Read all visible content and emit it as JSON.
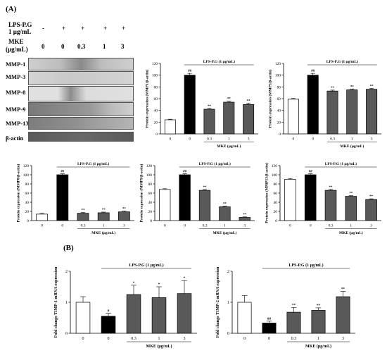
{
  "panels": {
    "a": "(A)",
    "b": "(B)"
  },
  "blot": {
    "treat_labels": [
      "LPS-P.G",
      "1 μg/mL"
    ],
    "treat_values": [
      "-",
      "+",
      "+",
      "+",
      "+"
    ],
    "mke_labels": [
      "MKE",
      "(μg/mL)"
    ],
    "mke_values": [
      "0",
      "0",
      "0.3",
      "1",
      "3"
    ],
    "bands": [
      "MMP-1",
      "MMP-3",
      "MMP-8",
      "MMP-9",
      "MMP-13",
      "β-actin"
    ]
  },
  "colors": {
    "control": "#ffffff",
    "lps": "#000000",
    "mke": "#595959"
  },
  "chart_data": [
    {
      "type": "bar",
      "ylabel": "Protein expression (MMP1/β-actin)",
      "ylim": [
        0,
        120
      ],
      "yticks": [
        "0",
        "20",
        "40",
        "60",
        "80",
        "100",
        "120"
      ],
      "categories": [
        "0",
        "0",
        "0.3",
        "1",
        "3"
      ],
      "values": [
        24,
        100,
        42,
        54,
        50
      ],
      "errors": [
        1,
        3,
        1.5,
        2,
        2.5
      ],
      "marks": [
        "",
        "##",
        "**",
        "**",
        "**"
      ],
      "lps_label": "LPS-P.G (1 μg/mL)",
      "xlabel": "MKE (μg/mL)"
    },
    {
      "type": "bar",
      "ylabel": "Protein expression (MMP3/β-actin)",
      "ylim": [
        0,
        120
      ],
      "yticks": [
        "0",
        "20",
        "40",
        "60",
        "80",
        "100",
        "120"
      ],
      "categories": [
        "0",
        "0",
        "0.3",
        "1",
        "3"
      ],
      "values": [
        59,
        100,
        73,
        75,
        76
      ],
      "errors": [
        1.5,
        3,
        1.5,
        1.5,
        1.5
      ],
      "marks": [
        "",
        "##",
        "**",
        "**",
        "**"
      ],
      "lps_label": "LPS-P.G (1 μg/mL)",
      "xlabel": "MKE (μg/mL)"
    },
    {
      "type": "bar",
      "ylabel": "Protein expression (MMP8/β-actin)",
      "ylim": [
        0,
        120
      ],
      "yticks": [
        "0",
        "20",
        "40",
        "60",
        "80",
        "100",
        "120"
      ],
      "categories": [
        "0",
        "0",
        "0.3",
        "1",
        "3"
      ],
      "values": [
        14,
        100,
        16,
        17,
        19
      ],
      "errors": [
        1.5,
        2,
        1.5,
        1.5,
        1.5
      ],
      "marks": [
        "",
        "##",
        "**",
        "**",
        "**"
      ],
      "lps_label": "LPS-P.G (1 μg/mL)",
      "xlabel": "MKE (μg/mL)"
    },
    {
      "type": "bar",
      "ylabel": "Protein expression (MMP9/β-actin)",
      "ylim": [
        0,
        120
      ],
      "yticks": [
        "0",
        "20",
        "40",
        "60",
        "80",
        "100",
        "120"
      ],
      "categories": [
        "0",
        "0",
        "0.3",
        "1",
        "3"
      ],
      "values": [
        68,
        100,
        66,
        30,
        7
      ],
      "errors": [
        1.5,
        2,
        2,
        1.5,
        1
      ],
      "marks": [
        "",
        "##",
        "**",
        "**",
        "**"
      ],
      "lps_label": "LPS-P.G (1 μg/mL)",
      "xlabel": "MKE (μg/mL)"
    },
    {
      "type": "bar",
      "ylabel": "Protein expression (MMP13/β-actin)",
      "ylim": [
        0,
        120
      ],
      "yticks": [
        "0",
        "20",
        "40",
        "60",
        "80",
        "100",
        "120"
      ],
      "categories": [
        "0",
        "0",
        "0.3",
        "1",
        "3"
      ],
      "values": [
        90,
        100,
        66,
        53,
        46
      ],
      "errors": [
        2,
        2,
        2,
        1.5,
        1.5
      ],
      "marks": [
        "",
        "##",
        "**",
        "**",
        "**"
      ],
      "lps_label": "LPS-P.G (1 μg/mL)",
      "xlabel": "MKE (μg/mL)"
    },
    {
      "type": "bar",
      "ylabel": "Fold change TIMP-1 mRNA expression",
      "ylim": [
        0,
        2
      ],
      "yticks": [
        "0",
        "1",
        "2"
      ],
      "categories": [
        "0",
        "0",
        "0.3",
        "1",
        "3"
      ],
      "values": [
        1.0,
        0.55,
        1.25,
        1.15,
        1.28
      ],
      "errors": [
        0.18,
        0.1,
        0.3,
        0.35,
        0.42
      ],
      "marks": [
        "",
        "#",
        "*",
        "*",
        "*"
      ],
      "lps_label": "LPS-P.G (1 μg/mL)",
      "xlabel": "MKE (μg/mL)"
    },
    {
      "type": "bar",
      "ylabel": "Fold change TIMP-2 mRNA expression",
      "ylim": [
        0,
        2
      ],
      "yticks": [
        "0",
        "1",
        "2"
      ],
      "categories": [
        "0",
        "0",
        "0.3",
        "1",
        "3"
      ],
      "values": [
        1.0,
        0.33,
        0.68,
        0.74,
        1.18
      ],
      "errors": [
        0.22,
        0.06,
        0.15,
        0.08,
        0.17
      ],
      "marks": [
        "",
        "##",
        "**",
        "**",
        "**"
      ],
      "lps_label": "LPS-P.G (1 μg/mL)",
      "xlabel": "MKE (μg/mL)"
    }
  ]
}
